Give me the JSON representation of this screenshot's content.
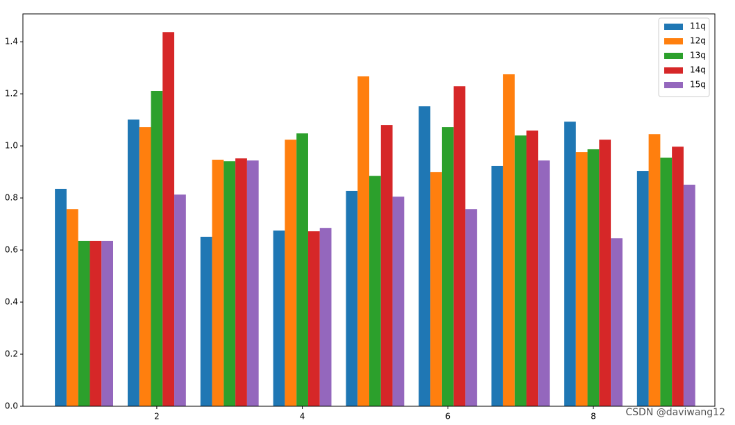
{
  "chart_data": {
    "type": "bar",
    "x": [
      1,
      2,
      3,
      4,
      5,
      6,
      7,
      8,
      9
    ],
    "series": [
      {
        "name": "11q",
        "color": "#1f77b4",
        "values": [
          0.835,
          1.101,
          0.651,
          0.675,
          0.827,
          1.152,
          0.923,
          1.093,
          0.904
        ]
      },
      {
        "name": "12q",
        "color": "#ff7f0e",
        "values": [
          0.757,
          1.072,
          0.947,
          1.024,
          1.267,
          0.899,
          1.275,
          0.976,
          1.045
        ]
      },
      {
        "name": "13q",
        "color": "#2ca02c",
        "values": [
          0.635,
          1.211,
          0.941,
          1.048,
          0.885,
          1.072,
          1.04,
          0.987,
          0.955
        ]
      },
      {
        "name": "14q",
        "color": "#d62728",
        "values": [
          0.635,
          1.437,
          0.952,
          0.672,
          1.08,
          1.229,
          1.059,
          1.024,
          0.997
        ]
      },
      {
        "name": "15q",
        "color": "#9467bd",
        "values": [
          0.635,
          0.813,
          0.944,
          0.685,
          0.805,
          0.757,
          0.944,
          0.645,
          0.851
        ]
      }
    ],
    "xlim": [
      0.16,
      9.67
    ],
    "xticks": [
      2,
      4,
      6,
      8
    ],
    "ylim": [
      0,
      1.507
    ],
    "yticks": [
      {
        "value": 0,
        "label": "0.0"
      },
      0.2,
      0.4,
      0.6,
      0.8,
      {
        "value": 1,
        "label": "1.0"
      },
      1.2,
      1.4
    ],
    "legend": "upper right",
    "watermark": "CSDN @daviwang12"
  }
}
